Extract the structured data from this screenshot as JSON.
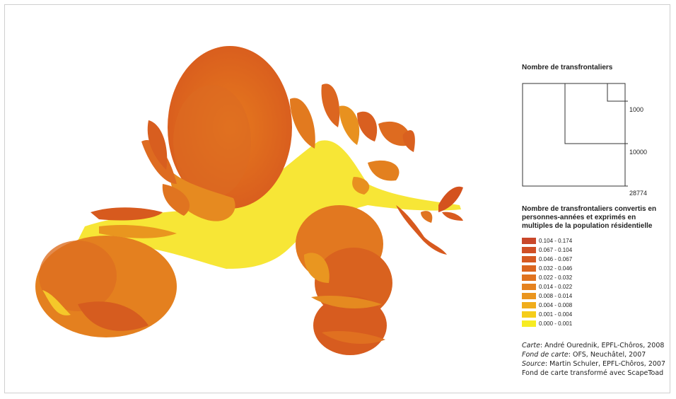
{
  "map": {
    "palette": {
      "light": "#f7ea3a",
      "mid": "#f2a321",
      "deep": "#e07a1f",
      "dark": "#d2551e"
    }
  },
  "legend": {
    "size_title": "Nombre de transfrontaliers",
    "size_labels": [
      "1000",
      "10000",
      "28774"
    ],
    "ramp_title": "Nombre de transfrontaliers convertis en personnes-années et exprimés en multiples de la population résidentielle",
    "classes": [
      {
        "label": "0.104 - 0.174",
        "color": "#c9472a"
      },
      {
        "label": "0.067 - 0.104",
        "color": "#d04f25"
      },
      {
        "label": "0.046 - 0.067",
        "color": "#d65a22"
      },
      {
        "label": "0.032 - 0.046",
        "color": "#db6620"
      },
      {
        "label": "0.022 - 0.032",
        "color": "#e07320"
      },
      {
        "label": "0.014 - 0.022",
        "color": "#e5821f"
      },
      {
        "label": "0.008 - 0.014",
        "color": "#ea951e"
      },
      {
        "label": "0.004 - 0.008",
        "color": "#f0ad1c"
      },
      {
        "label": "0.001 - 0.004",
        "color": "#f5cd1a"
      },
      {
        "label": "0.000 - 0.001",
        "color": "#f7ec22"
      }
    ]
  },
  "credits": [
    {
      "key": "Carte",
      "value": ": André Ourednik, EPFL-Chôros, 2008"
    },
    {
      "key": "Fond de carte",
      "value": ": OFS, Neuchâtel, 2007"
    },
    {
      "key": "Source",
      "value": ": Martin Schuler, EPFL-Chôros, 2007"
    },
    {
      "key": "",
      "value": "Fond de carte transformé avec ScapeToad"
    }
  ]
}
